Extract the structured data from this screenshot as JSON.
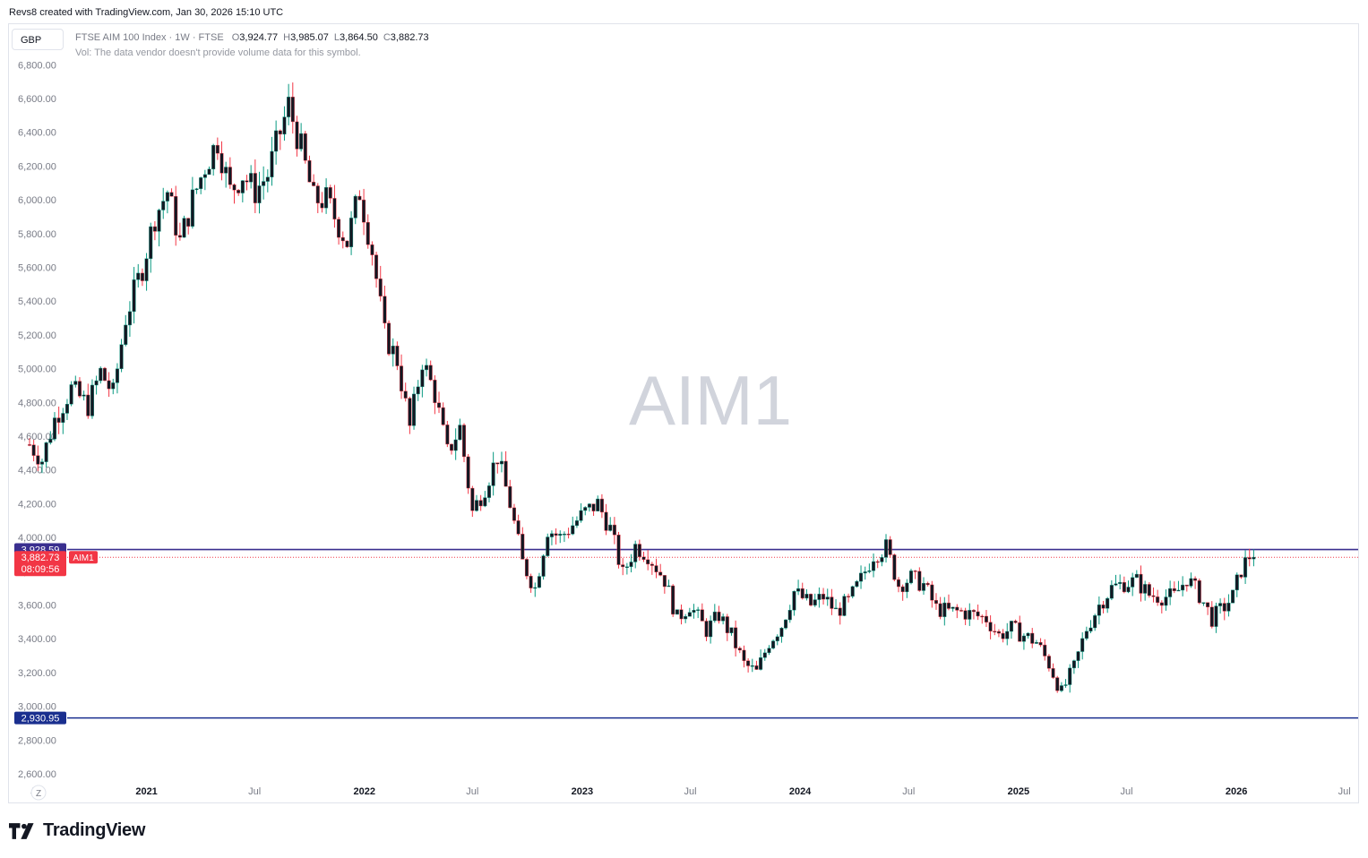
{
  "header": {
    "credit": "Revs8 created with TradingView.com, Jan 30, 2026 15:10 UTC"
  },
  "chart_header": {
    "currency": "GBP",
    "symbol_title": "FTSE AIM 100 Index · 1W · FTSE",
    "ohlc": [
      {
        "label": "O",
        "value": "3,924.77"
      },
      {
        "label": "H",
        "value": "3,985.07"
      },
      {
        "label": "L",
        "value": "3,864.50"
      },
      {
        "label": "C",
        "value": "3,882.73"
      }
    ],
    "volume_note": "Vol: The data vendor doesn't provide volume data for this symbol.",
    "watermark": "AIM1"
  },
  "price_labels": {
    "upper_line_value": 3928.59,
    "upper_line_text": "3,928.59",
    "last_price_value": 3882.73,
    "last_price_text": "3,882.73",
    "countdown": "08:09:56",
    "symbol_tag": "AIM1",
    "lower_line_value": 2930.95,
    "lower_line_text": "2,930.95"
  },
  "footer": {
    "brand": "TradingView",
    "zoom_button": "Z"
  },
  "colors": {
    "up": "#089981",
    "down": "#f23645",
    "candle_body": "#131722",
    "upper_line": "#3a2f8f",
    "lower_line": "#1a2f8f",
    "last_price": "#f23645"
  },
  "chart_data": {
    "type": "candlestick",
    "title": "FTSE AIM 100 Index · 1W · FTSE",
    "y_axis": {
      "range": [
        2500,
        6900
      ],
      "ticks": [
        2600,
        2800,
        3000,
        3200,
        3400,
        3600,
        3800,
        4000,
        4200,
        4400,
        4600,
        4800,
        5000,
        5200,
        5400,
        5600,
        5800,
        6000,
        6200,
        6400,
        6600,
        6800
      ],
      "tick_labels": [
        "2,600.00",
        "2,800.00",
        "3,000.00",
        "3,200.00",
        "3,400.00",
        "3,600.00",
        "3,800.00",
        "4,000.00",
        "4,200.00",
        "4,400.00",
        "4,600.00",
        "4,800.00",
        "5,000.00",
        "5,200.00",
        "5,400.00",
        "5,600.00",
        "5,800.00",
        "6,000.00",
        "6,200.00",
        "6,400.00",
        "6,600.00",
        "6,800.00"
      ]
    },
    "x_axis": {
      "range": [
        "2020-06-01",
        "2026-07-15"
      ],
      "ticks": [
        {
          "date": "2020-07-01",
          "label": "Jul"
        },
        {
          "date": "2021-01-01",
          "label": "2021"
        },
        {
          "date": "2021-07-01",
          "label": "Jul"
        },
        {
          "date": "2022-01-01",
          "label": "2022"
        },
        {
          "date": "2022-07-01",
          "label": "Jul"
        },
        {
          "date": "2023-01-01",
          "label": "2023"
        },
        {
          "date": "2023-07-01",
          "label": "Jul"
        },
        {
          "date": "2024-01-01",
          "label": "2024"
        },
        {
          "date": "2024-07-01",
          "label": "Jul"
        },
        {
          "date": "2025-01-01",
          "label": "2025"
        },
        {
          "date": "2025-07-01",
          "label": "Jul"
        },
        {
          "date": "2026-01-01",
          "label": "2026"
        },
        {
          "date": "2026-07-01",
          "label": "Jul"
        }
      ]
    },
    "series": [
      {
        "path": [
          [
            "2020-06-19",
            4550
          ],
          [
            "2020-07-10",
            4460
          ],
          [
            "2020-07-31",
            4700
          ],
          [
            "2020-08-28",
            4880
          ],
          [
            "2020-09-25",
            4780
          ],
          [
            "2020-10-16",
            4980
          ],
          [
            "2020-11-06",
            4850
          ],
          [
            "2020-11-27",
            5300
          ],
          [
            "2020-12-25",
            5600
          ],
          [
            "2021-01-15",
            5900
          ],
          [
            "2021-02-05",
            6050
          ],
          [
            "2021-02-26",
            5750
          ],
          [
            "2021-03-19",
            6000
          ],
          [
            "2021-04-09",
            6200
          ],
          [
            "2021-04-30",
            6350
          ],
          [
            "2021-05-21",
            6050
          ],
          [
            "2021-06-11",
            6150
          ],
          [
            "2021-07-02",
            6050
          ],
          [
            "2021-07-23",
            6150
          ],
          [
            "2021-08-13",
            6400
          ],
          [
            "2021-08-27",
            6560
          ],
          [
            "2021-09-17",
            6300
          ],
          [
            "2021-10-08",
            6000
          ],
          [
            "2021-10-29",
            6000
          ],
          [
            "2021-11-19",
            5850
          ],
          [
            "2021-12-03",
            5750
          ],
          [
            "2021-12-24",
            6050
          ],
          [
            "2022-01-14",
            5700
          ],
          [
            "2022-02-04",
            5200
          ],
          [
            "2022-02-25",
            5050
          ],
          [
            "2022-03-18",
            4650
          ],
          [
            "2022-04-08",
            5050
          ],
          [
            "2022-04-29",
            4850
          ],
          [
            "2022-05-20",
            4500
          ],
          [
            "2022-06-10",
            4650
          ],
          [
            "2022-07-01",
            4150
          ],
          [
            "2022-07-22",
            4300
          ],
          [
            "2022-08-12",
            4480
          ],
          [
            "2022-09-02",
            4200
          ],
          [
            "2022-09-23",
            3850
          ],
          [
            "2022-10-14",
            3700
          ],
          [
            "2022-11-04",
            4050
          ],
          [
            "2022-11-25",
            4000
          ],
          [
            "2023-01-06",
            4150
          ],
          [
            "2023-01-27",
            4200
          ],
          [
            "2023-02-17",
            4050
          ],
          [
            "2023-03-10",
            3780
          ],
          [
            "2023-03-31",
            3950
          ],
          [
            "2023-04-21",
            3900
          ],
          [
            "2023-05-19",
            3750
          ],
          [
            "2023-06-09",
            3520
          ],
          [
            "2023-06-30",
            3600
          ],
          [
            "2023-07-28",
            3450
          ],
          [
            "2023-08-18",
            3540
          ],
          [
            "2023-09-08",
            3420
          ],
          [
            "2023-09-29",
            3250
          ],
          [
            "2023-10-20",
            3200
          ],
          [
            "2023-11-10",
            3380
          ],
          [
            "2023-12-01",
            3480
          ],
          [
            "2023-12-22",
            3680
          ],
          [
            "2024-01-19",
            3600
          ],
          [
            "2024-02-09",
            3650
          ],
          [
            "2024-03-01",
            3560
          ],
          [
            "2024-03-22",
            3620
          ],
          [
            "2024-04-12",
            3750
          ],
          [
            "2024-05-03",
            3900
          ],
          [
            "2024-05-24",
            3940
          ],
          [
            "2024-06-14",
            3720
          ],
          [
            "2024-07-05",
            3760
          ],
          [
            "2024-07-26",
            3720
          ],
          [
            "2024-08-16",
            3580
          ],
          [
            "2024-09-06",
            3560
          ],
          [
            "2024-09-27",
            3560
          ],
          [
            "2024-10-18",
            3540
          ],
          [
            "2024-11-08",
            3520
          ],
          [
            "2024-11-29",
            3420
          ],
          [
            "2024-12-20",
            3460
          ],
          [
            "2025-01-10",
            3420
          ],
          [
            "2025-01-31",
            3380
          ],
          [
            "2025-02-21",
            3250
          ],
          [
            "2025-03-14",
            3080
          ],
          [
            "2025-04-04",
            3230
          ],
          [
            "2025-04-25",
            3460
          ],
          [
            "2025-05-16",
            3600
          ],
          [
            "2025-06-06",
            3700
          ],
          [
            "2025-06-27",
            3730
          ],
          [
            "2025-07-18",
            3740
          ],
          [
            "2025-08-08",
            3660
          ],
          [
            "2025-08-29",
            3650
          ],
          [
            "2025-09-19",
            3650
          ],
          [
            "2025-10-10",
            3760
          ],
          [
            "2025-10-31",
            3660
          ],
          [
            "2025-11-21",
            3520
          ],
          [
            "2025-12-12",
            3590
          ],
          [
            "2025-12-26",
            3650
          ],
          [
            "2026-01-09",
            3810
          ],
          [
            "2026-01-23",
            3890
          ],
          [
            "2026-01-30",
            3882.73
          ]
        ]
      }
    ]
  }
}
